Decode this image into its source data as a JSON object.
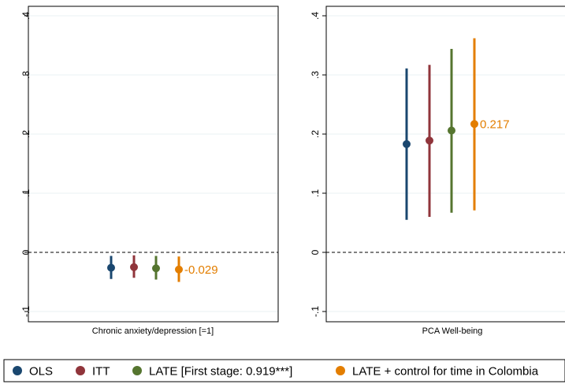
{
  "chart_data": [
    {
      "type": "scatter",
      "subtype": "coefficient-plot-with-confidence-intervals",
      "xlabel": "Chronic anxiety/depression [=1]",
      "ylim": [
        -0.115,
        0.415
      ],
      "y_ticks": [
        -0.1,
        0,
        0.1,
        0.2,
        0.3,
        0.4
      ],
      "y_tick_labels": [
        "-.1",
        "0",
        ".1",
        ".2",
        ".3",
        ".4"
      ],
      "reference_line": 0,
      "grid": true,
      "series": [
        {
          "name": "OLS",
          "estimate": -0.026,
          "ci_low": -0.045,
          "ci_high": -0.006
        },
        {
          "name": "ITT",
          "estimate": -0.025,
          "ci_low": -0.043,
          "ci_high": -0.005
        },
        {
          "name": "LATE [First stage: 0.919***]",
          "estimate": -0.027,
          "ci_low": -0.046,
          "ci_high": -0.006
        },
        {
          "name": "LATE + control for time in Colombia",
          "estimate": -0.029,
          "ci_low": -0.05,
          "ci_high": -0.007
        }
      ],
      "annotation": "-0.029"
    },
    {
      "type": "scatter",
      "subtype": "coefficient-plot-with-confidence-intervals",
      "xlabel": "PCA Well-being",
      "ylim": [
        -0.115,
        0.415
      ],
      "y_ticks": [
        -0.1,
        0,
        0.1,
        0.2,
        0.3,
        0.4
      ],
      "y_tick_labels": [
        "-.1",
        "0",
        ".1",
        ".2",
        ".3",
        ".4"
      ],
      "reference_line": 0,
      "grid": true,
      "series": [
        {
          "name": "OLS",
          "estimate": 0.183,
          "ci_low": 0.055,
          "ci_high": 0.311
        },
        {
          "name": "ITT",
          "estimate": 0.189,
          "ci_low": 0.06,
          "ci_high": 0.317
        },
        {
          "name": "LATE [First stage: 0.919***]",
          "estimate": 0.206,
          "ci_low": 0.067,
          "ci_high": 0.344
        },
        {
          "name": "LATE + control for time in Colombia",
          "estimate": 0.217,
          "ci_low": 0.071,
          "ci_high": 0.362
        }
      ],
      "annotation": "0.217"
    }
  ],
  "legend": {
    "placement": "bottom",
    "items": [
      {
        "label": "OLS",
        "color": "#1a476f"
      },
      {
        "label": "ITT",
        "color": "#90353b"
      },
      {
        "label": "LATE [First stage: 0.919***]",
        "color": "#55752f"
      },
      {
        "label": "LATE + control for time in Colombia",
        "color": "#e37e00"
      }
    ]
  },
  "colors": {
    "ols": "#1a476f",
    "itt": "#90353b",
    "late": "#55752f",
    "late_time": "#e37e00",
    "annotation": "#e37e00",
    "grid": "#eaf2f3",
    "frame": "#000000"
  }
}
